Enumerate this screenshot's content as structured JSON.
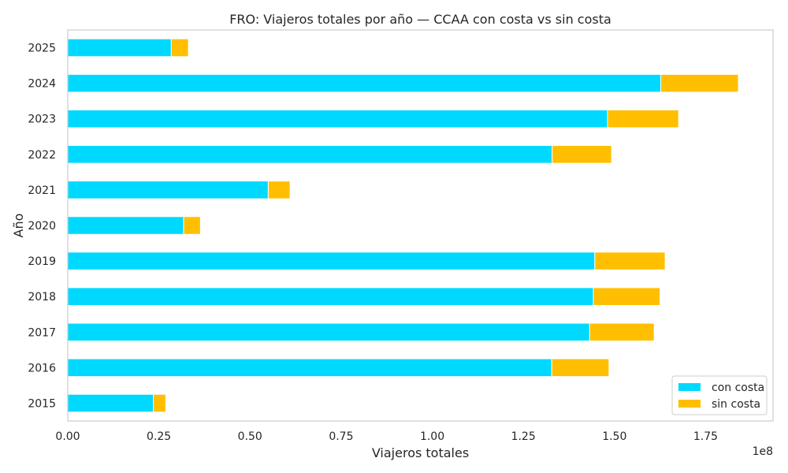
{
  "chart_data": {
    "type": "bar",
    "orientation": "horizontal",
    "stacked": true,
    "title": "FRO: Viajeros totales por año — CCAA con costa vs sin costa",
    "xlabel": "Viajeros totales",
    "ylabel": "Año",
    "x_scale_label": "1e8",
    "categories": [
      "2015",
      "2016",
      "2017",
      "2018",
      "2019",
      "2020",
      "2021",
      "2022",
      "2023",
      "2024",
      "2025"
    ],
    "series": [
      {
        "name": "con costa",
        "color": "#00d9ff",
        "values": [
          23500000,
          132800000,
          143200000,
          144200000,
          144600000,
          31800000,
          55000000,
          132900000,
          148100000,
          162700000,
          28400000
        ]
      },
      {
        "name": "sin costa",
        "color": "#ffbf00",
        "values": [
          3400000,
          15700000,
          17700000,
          18300000,
          19300000,
          4600000,
          6000000,
          16300000,
          19500000,
          21300000,
          4700000
        ]
      }
    ],
    "xlim": [
      0,
      193500000
    ],
    "xticks": [
      0,
      25000000,
      50000000,
      75000000,
      100000000,
      125000000,
      150000000,
      175000000
    ],
    "xtick_labels": [
      "0.00",
      "0.25",
      "0.50",
      "0.75",
      "1.00",
      "1.25",
      "1.50",
      "1.75"
    ],
    "grid": false,
    "legend_position": "lower-right"
  }
}
